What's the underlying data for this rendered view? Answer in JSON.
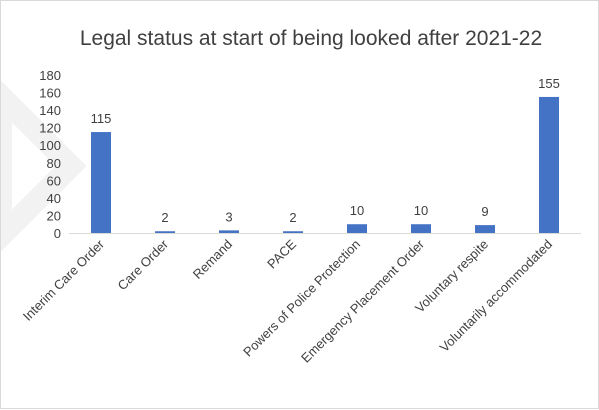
{
  "chart_data": {
    "type": "bar",
    "title": "Legal status at start of being looked after 2021-22",
    "xlabel": "",
    "ylabel": "",
    "categories": [
      "Interim Care Order",
      "Care Order",
      "Remand",
      "PACE",
      "Powers of Police Protection",
      "Emergency Placement Order",
      "Voluntary respite",
      "Voluntarily accommodated"
    ],
    "values": [
      115,
      2,
      3,
      2,
      10,
      10,
      9,
      155
    ],
    "data_labels": [
      "115",
      "2",
      "3",
      "2",
      "10",
      "10",
      "9",
      "155"
    ],
    "ylim": [
      0,
      180
    ],
    "yticks": [
      0,
      20,
      40,
      60,
      80,
      100,
      120,
      140,
      160,
      180
    ],
    "ytick_labels": [
      "0",
      "20",
      "40",
      "60",
      "80",
      "100",
      "120",
      "140",
      "160",
      "180"
    ],
    "grid": false,
    "legend": "none",
    "bar_color": "#4472C4",
    "axis_color": "#D9D9D9",
    "text_color": "#404040"
  },
  "colors": {
    "frame_border": "#D9D9D9",
    "watermark": "#F2F2F2",
    "background": "#FFFFFF"
  }
}
